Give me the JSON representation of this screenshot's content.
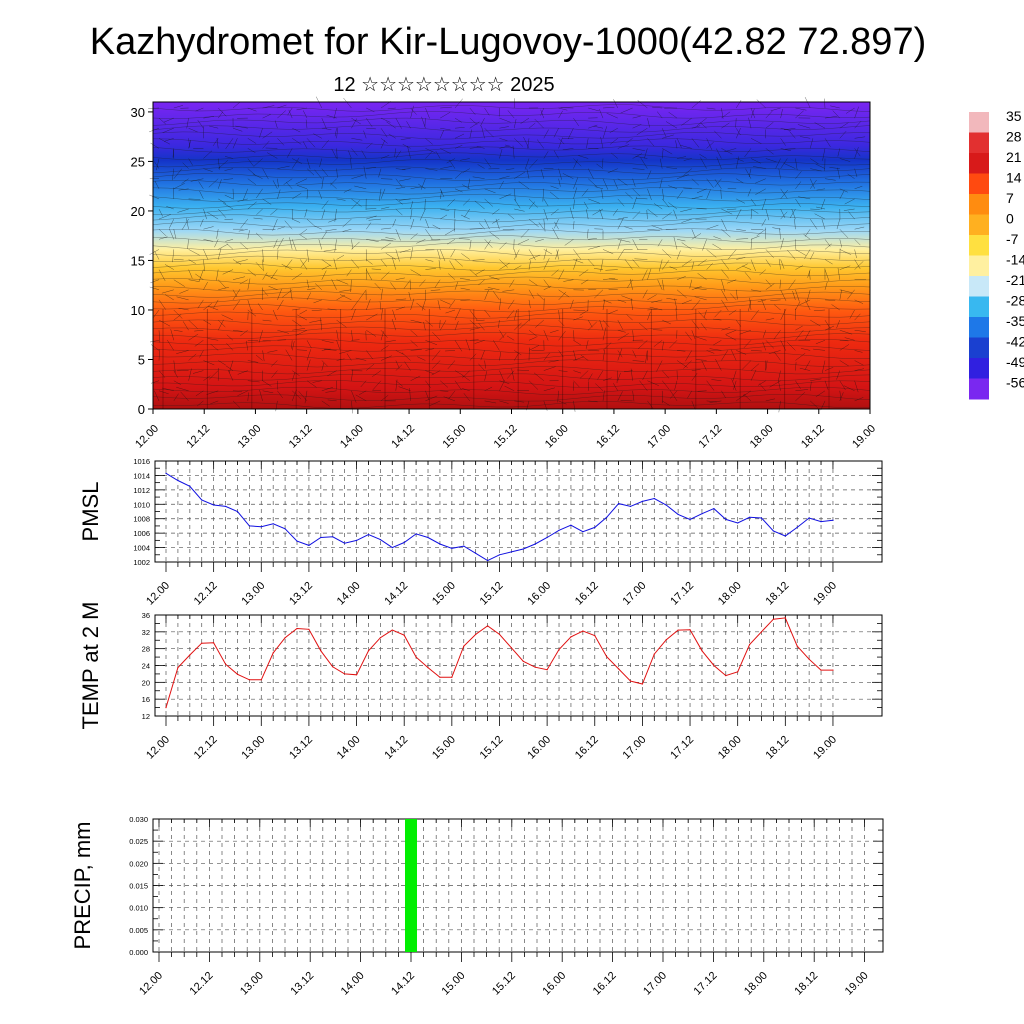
{
  "title": "Kazhydromet for Kir-Lugovoy-1000(42.82 72.897)",
  "subtitle": "12 ☆☆☆☆☆☆☆☆ 2025",
  "time_ticks": [
    "12.00",
    "12.12",
    "13.00",
    "13.12",
    "14.00",
    "14.12",
    "15.00",
    "15.12",
    "16.00",
    "16.12",
    "17.00",
    "17.12",
    "18.00",
    "18.12",
    "19.00"
  ],
  "colorbar": {
    "labels": [
      "35",
      "28",
      "21",
      "14",
      "7",
      "0",
      "-7",
      "-14",
      "-21",
      "-28",
      "-35",
      "-42",
      "-49",
      "-56"
    ],
    "colors": [
      "#f2b8bc",
      "#e23030",
      "#d81a1a",
      "#ff4a10",
      "#ff8c10",
      "#ffb020",
      "#ffe040",
      "#fff0a0",
      "#c8e8f8",
      "#38b8f0",
      "#1e78e8",
      "#1a40d0",
      "#3020e0",
      "#7a28f0"
    ]
  },
  "chart_data": [
    {
      "type": "heatmap",
      "description_ylabel": "",
      "ylim": [
        0,
        31
      ],
      "y_ticks": [
        0,
        5,
        10,
        15,
        20,
        25,
        30
      ],
      "x_ticks": [
        "12.00",
        "12.12",
        "13.00",
        "13.12",
        "14.00",
        "14.12",
        "15.00",
        "15.12",
        "16.00",
        "16.12",
        "17.00",
        "17.12",
        "18.00",
        "18.12",
        "19.00"
      ],
      "value_range": [
        -56,
        35
      ],
      "overlay": "wind barbs and contour lines"
    },
    {
      "type": "line",
      "ylabel": "PMSL",
      "ylim": [
        1002,
        1016
      ],
      "y_ticks": [
        1002,
        1004,
        1006,
        1008,
        1010,
        1012,
        1014,
        1016
      ],
      "x_ticks": [
        "12.00",
        "12.12",
        "13.00",
        "13.12",
        "14.00",
        "14.12",
        "15.00",
        "15.12",
        "16.00",
        "16.12",
        "17.00",
        "17.12",
        "18.00",
        "18.12",
        "19.00"
      ],
      "color": "#1010e0",
      "values": [
        1014.3,
        1013.3,
        1012.5,
        1010.6,
        1009.9,
        1009.7,
        1009.0,
        1007.0,
        1006.9,
        1007.3,
        1006.6,
        1004.9,
        1004.3,
        1005.4,
        1005.5,
        1004.6,
        1005.0,
        1005.8,
        1005.1,
        1004.0,
        1004.7,
        1005.9,
        1005.4,
        1004.5,
        1003.9,
        1004.2,
        1003.2,
        1002.2,
        1003.0,
        1003.4,
        1003.8,
        1004.5,
        1005.4,
        1006.4,
        1007.1,
        1006.2,
        1006.8,
        1008.2,
        1010.1,
        1009.7,
        1010.4,
        1010.8,
        1009.9,
        1008.6,
        1007.9,
        1008.7,
        1009.4,
        1007.9,
        1007.4,
        1008.2,
        1008.1,
        1006.3,
        1005.6,
        1006.8,
        1008.1,
        1007.6,
        1007.8
      ]
    },
    {
      "type": "line",
      "ylabel": "TEMP at 2 M",
      "ylim": [
        12,
        36
      ],
      "y_ticks": [
        12,
        16,
        20,
        24,
        28,
        32,
        36
      ],
      "x_ticks": [
        "12.00",
        "12.12",
        "13.00",
        "13.12",
        "14.00",
        "14.12",
        "15.00",
        "15.12",
        "16.00",
        "16.12",
        "17.00",
        "17.12",
        "18.00",
        "18.12",
        "19.00"
      ],
      "color": "#e01010",
      "values": [
        14.0,
        23.5,
        26.5,
        29.3,
        29.4,
        24.3,
        21.9,
        20.6,
        20.6,
        27.0,
        30.6,
        32.8,
        32.6,
        27.5,
        23.7,
        22.0,
        21.8,
        27.5,
        30.6,
        32.4,
        31.2,
        26.0,
        23.5,
        21.2,
        21.2,
        28.6,
        31.4,
        33.4,
        31.4,
        28.2,
        25.0,
        23.6,
        23.0,
        27.8,
        30.8,
        32.2,
        31.1,
        26.1,
        23.2,
        20.3,
        19.6,
        26.7,
        30.1,
        32.4,
        32.5,
        27.5,
        24.0,
        21.6,
        22.5,
        29.0,
        32.0,
        35.0,
        35.3,
        28.6,
        25.5,
        22.9,
        22.9
      ]
    },
    {
      "type": "bar",
      "ylabel": "PRECIP, mm",
      "ylim": [
        0,
        0.03
      ],
      "y_ticks": [
        "0.000",
        "0.005",
        "0.010",
        "0.015",
        "0.020",
        "0.025",
        "0.030"
      ],
      "x_ticks": [
        "12.00",
        "12.12",
        "13.00",
        "13.12",
        "14.00",
        "14.12",
        "15.00",
        "15.12",
        "16.00",
        "16.12",
        "17.00",
        "17.12",
        "18.00",
        "18.12",
        "19.00"
      ],
      "color": "#00ee00",
      "bars": [
        {
          "x": "14.12",
          "value": 0.03
        }
      ]
    }
  ]
}
